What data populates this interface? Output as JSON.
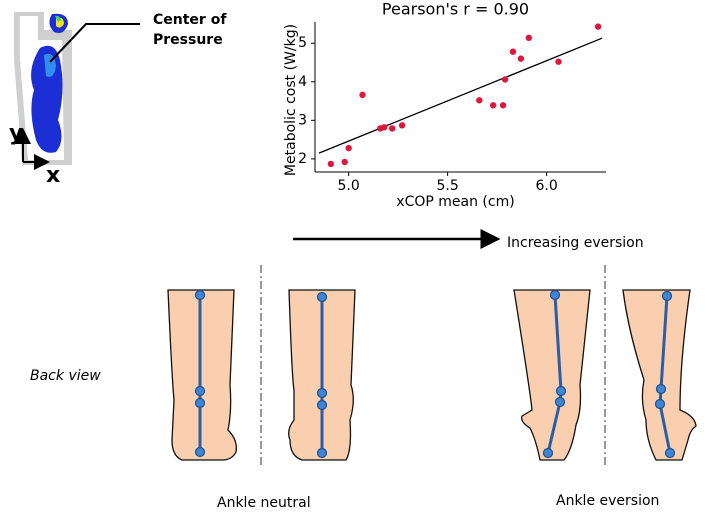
{
  "chart_data": {
    "type": "scatter",
    "title": "Pearson's r = 0.90",
    "x_label": "xCOP mean  (cm)",
    "y_label": "Metabolic cost (W/kg)",
    "color": "#e0173c",
    "x": [
      4.91,
      4.98,
      5.0,
      5.07,
      5.16,
      5.18,
      5.22,
      5.27,
      5.66,
      5.73,
      5.78,
      5.79,
      5.83,
      5.87,
      5.91,
      6.06,
      6.26
    ],
    "values": [
      1.87,
      1.92,
      2.28,
      3.66,
      2.79,
      2.82,
      2.79,
      2.87,
      3.52,
      3.39,
      3.39,
      4.06,
      4.78,
      4.6,
      5.14,
      4.52,
      5.43
    ],
    "fit_line": {
      "x": [
        4.85,
        6.28
      ],
      "y": [
        2.15,
        5.13
      ],
      "color": "#000000"
    },
    "xlim": [
      4.83,
      6.3
    ],
    "ylim": [
      1.66,
      5.55
    ],
    "xticks": [
      {
        "value": 5,
        "label": "5.0"
      },
      5.5,
      {
        "value": 6,
        "label": "6.0"
      }
    ],
    "yticks": [
      2,
      3,
      4,
      5
    ]
  },
  "labels": {
    "center_of_pressure": [
      "Center of",
      "Pressure"
    ],
    "axis_y": "y",
    "axis_x": "x",
    "increasing_eversion": "Increasing eversion",
    "back_view": "Back view",
    "ankle_neutral": "Ankle neutral",
    "ankle_eversion": "Ankle eversion"
  }
}
